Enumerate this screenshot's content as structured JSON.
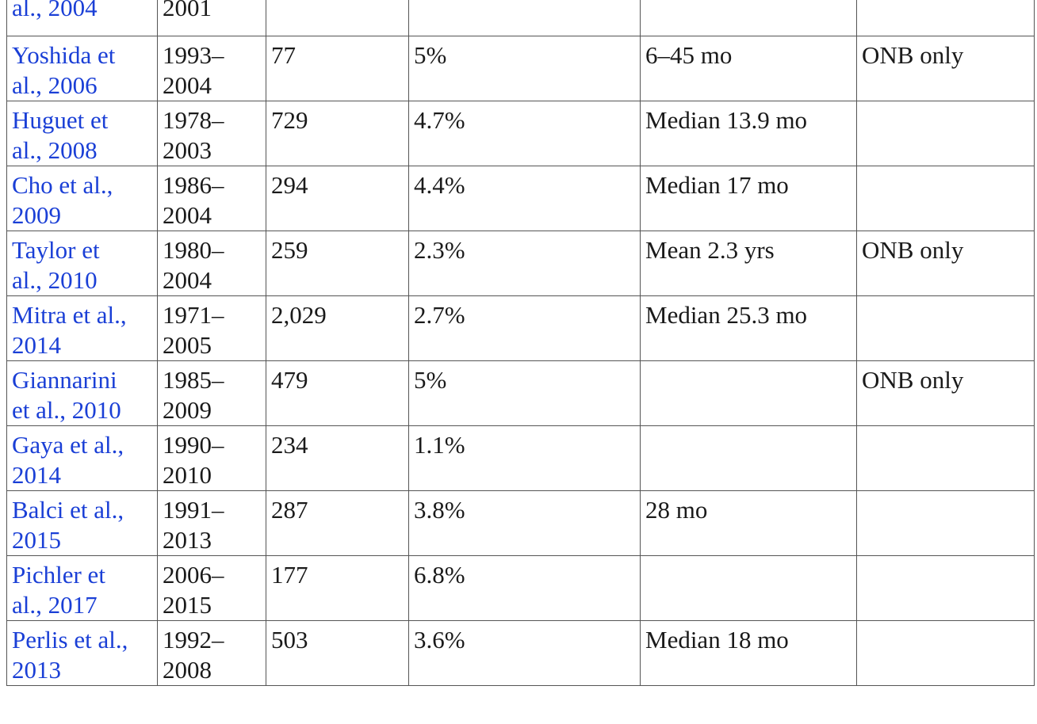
{
  "rows": [
    {
      "study": [
        "al., 2004"
      ],
      "period": [
        "2001"
      ],
      "n": "",
      "rate": "",
      "time": "",
      "note": ""
    },
    {
      "study": [
        "Yoshida et",
        "al., 2006"
      ],
      "period": [
        "1993–",
        "2004"
      ],
      "n": "77",
      "rate": "5%",
      "time": "6–45 mo",
      "note": "ONB only"
    },
    {
      "study": [
        "Huguet et",
        "al., 2008"
      ],
      "period": [
        "1978–",
        "2003"
      ],
      "n": "729",
      "rate": "4.7%",
      "time": "Median 13.9 mo",
      "note": ""
    },
    {
      "study": [
        "Cho et al.,",
        "2009"
      ],
      "period": [
        "1986–",
        "2004"
      ],
      "n": "294",
      "rate": "4.4%",
      "time": "Median 17 mo",
      "note": ""
    },
    {
      "study": [
        "Taylor et",
        "al., 2010"
      ],
      "period": [
        "1980–",
        "2004"
      ],
      "n": "259",
      "rate": "2.3%",
      "time": "Mean 2.3 yrs",
      "note": "ONB only"
    },
    {
      "study": [
        "Mitra et al.,",
        "2014"
      ],
      "period": [
        "1971–",
        "2005"
      ],
      "n": "2,029",
      "rate": "2.7%",
      "time": "Median 25.3 mo",
      "note": ""
    },
    {
      "study": [
        "Giannarini",
        "et al., 2010"
      ],
      "period": [
        "1985–",
        "2009"
      ],
      "n": "479",
      "rate": "5%",
      "time": "",
      "note": "ONB only"
    },
    {
      "study": [
        "Gaya et al.,",
        "2014"
      ],
      "period": [
        "1990–",
        "2010"
      ],
      "n": "234",
      "rate": "1.1%",
      "time": "",
      "note": ""
    },
    {
      "study": [
        "Balci et al.,",
        "2015"
      ],
      "period": [
        "1991–",
        "2013"
      ],
      "n": "287",
      "rate": "3.8%",
      "time": "28 mo",
      "note": ""
    },
    {
      "study": [
        "Pichler et",
        "al., 2017"
      ],
      "period": [
        "2006–",
        "2015"
      ],
      "n": "177",
      "rate": "6.8%",
      "time": "",
      "note": ""
    },
    {
      "study": [
        "Perlis et al.,",
        "2013"
      ],
      "period": [
        "1992–",
        "2008"
      ],
      "n": "503",
      "rate": "3.6%",
      "time": "Median 18 mo",
      "note": ""
    }
  ],
  "colors": {
    "link": "#1a3fd6",
    "text": "#1a1a1a",
    "border": "#555555"
  }
}
